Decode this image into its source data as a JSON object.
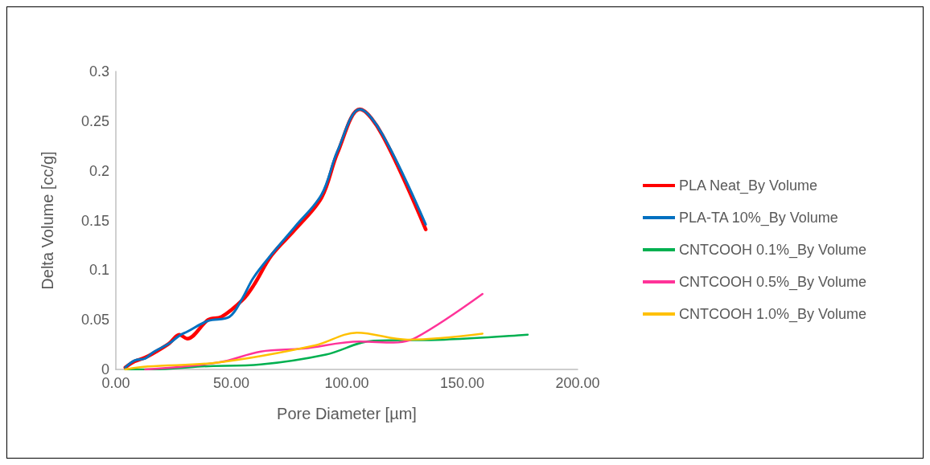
{
  "chart_data": {
    "type": "line",
    "xlabel": "Pore Diameter [µm]",
    "ylabel": "Delta Volume [cc/g]",
    "xlim": [
      0,
      200
    ],
    "xticks": [
      {
        "value": 0,
        "label": "0.00"
      },
      {
        "value": 50,
        "label": "50.00"
      },
      {
        "value": 100,
        "label": "100.00"
      },
      {
        "value": 150,
        "label": "150.00"
      },
      {
        "value": 200,
        "label": "200.00"
      }
    ],
    "ylim": [
      0,
      0.3
    ],
    "yticks": [
      0,
      0.05,
      0.1,
      0.15,
      0.2,
      0.25,
      0.3
    ],
    "grid": false,
    "legend": "right",
    "marker": "none",
    "line_style": "solid",
    "series": [
      {
        "name": "PLA Neat_By Volume",
        "color": "#ff0000",
        "x": [
          4.1,
          8.1,
          12.7,
          16,
          23,
          27.5,
          30.9,
          40,
          45.8,
          54.9,
          59.5,
          67.5,
          77.7,
          89.1,
          96,
          105.7,
          115.4,
          134.2
        ],
        "values": [
          0.002,
          0.008,
          0.012,
          0.016,
          0.026,
          0.035,
          0.031,
          0.05,
          0.053,
          0.07,
          0.084,
          0.115,
          0.141,
          0.173,
          0.218,
          0.262,
          0.236,
          0.141
        ]
      },
      {
        "name": "PLA-TA 10%_By Volume",
        "color": "#0070c0",
        "x": [
          4.1,
          8.1,
          12.7,
          16,
          23,
          27.5,
          30.9,
          40,
          49.2,
          54.9,
          59.5,
          67.5,
          77.7,
          89.1,
          96,
          105.7,
          115.4,
          134.2
        ],
        "values": [
          0.002,
          0.009,
          0.011,
          0.017,
          0.026,
          0.034,
          0.038,
          0.049,
          0.053,
          0.072,
          0.092,
          0.116,
          0.144,
          0.176,
          0.22,
          0.262,
          0.237,
          0.146
        ]
      },
      {
        "name": "CNTCOOH 0.1%_By Volume",
        "color": "#00b050",
        "x": [
          4.1,
          16.3,
          37,
          62.8,
          91,
          111.6,
          142.3,
          178.4
        ],
        "values": [
          0,
          0,
          0.003,
          0.005,
          0.015,
          0.029,
          0.03,
          0.035
        ]
      },
      {
        "name": "CNTCOOH 0.5%_By Volume",
        "color": "#ff3399",
        "x": [
          12.7,
          44.5,
          62.8,
          81.2,
          105.6,
          120.3,
          130,
          158.8
        ],
        "values": [
          0,
          0.007,
          0.018,
          0.021,
          0.028,
          0.027,
          0.032,
          0.076
        ]
      },
      {
        "name": "CNTCOOH 1.0%_By Volume",
        "color": "#ffc000",
        "x": [
          4.1,
          13.9,
          44.5,
          86,
          104.4,
          126.3,
          158.8
        ],
        "values": [
          0,
          0.003,
          0.007,
          0.024,
          0.037,
          0.03,
          0.036
        ]
      }
    ]
  }
}
